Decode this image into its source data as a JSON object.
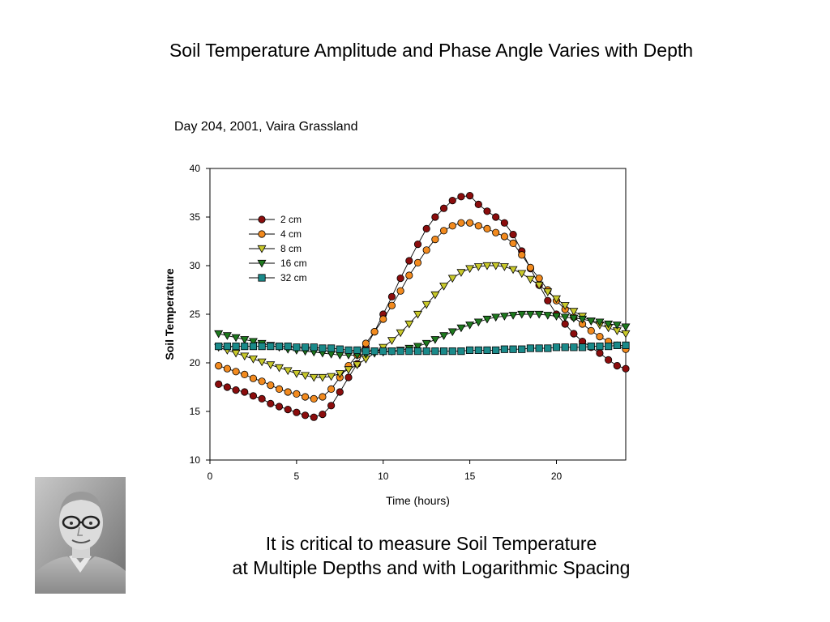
{
  "slide": {
    "title": "Soil Temperature Amplitude and Phase Angle Varies with Depth",
    "caption_line1": "It is critical to measure Soil Temperature",
    "caption_line2": "at Multiple Depths and with Logarithmic Spacing",
    "photo_icon": "portrait-photo"
  },
  "chart_data": {
    "type": "line",
    "title": "Day 204, 2001, Vaira Grassland",
    "xlabel": "Time (hours)",
    "ylabel": "Soil Temperature",
    "xlim": [
      0,
      24
    ],
    "ylim": [
      10,
      40
    ],
    "xticks": [
      0,
      5,
      10,
      15,
      20
    ],
    "yticks": [
      10,
      15,
      20,
      25,
      30,
      35,
      40
    ],
    "grid": false,
    "legend_position": "upper-left",
    "x": [
      0.5,
      1.0,
      1.5,
      2.0,
      2.5,
      3.0,
      3.5,
      4.0,
      4.5,
      5.0,
      5.5,
      6.0,
      6.5,
      7.0,
      7.5,
      8.0,
      8.5,
      9.0,
      9.5,
      10.0,
      10.5,
      11.0,
      11.5,
      12.0,
      12.5,
      13.0,
      13.5,
      14.0,
      14.5,
      15.0,
      15.5,
      16.0,
      16.5,
      17.0,
      17.5,
      18.0,
      18.5,
      19.0,
      19.5,
      20.0,
      20.5,
      21.0,
      21.5,
      22.0,
      22.5,
      23.0,
      23.5,
      24.0
    ],
    "series": [
      {
        "name": "2 cm",
        "marker": "circle",
        "color": "#8b0d0d",
        "values": [
          17.8,
          17.5,
          17.2,
          17.0,
          16.6,
          16.3,
          15.8,
          15.5,
          15.2,
          14.9,
          14.6,
          14.4,
          14.7,
          15.6,
          17.0,
          18.5,
          19.9,
          21.6,
          23.2,
          25.0,
          26.8,
          28.7,
          30.5,
          32.2,
          33.8,
          35.0,
          35.9,
          36.7,
          37.1,
          37.2,
          36.3,
          35.6,
          35.0,
          34.4,
          33.2,
          31.5,
          29.7,
          28.0,
          26.4,
          25.0,
          24.0,
          23.0,
          22.2,
          21.6,
          21.0,
          20.3,
          19.7,
          19.4
        ]
      },
      {
        "name": "4 cm",
        "marker": "circle",
        "color": "#f28a1e",
        "values": [
          19.7,
          19.4,
          19.1,
          18.8,
          18.4,
          18.1,
          17.7,
          17.3,
          17.0,
          16.8,
          16.5,
          16.3,
          16.5,
          17.3,
          18.5,
          19.7,
          20.8,
          22.0,
          23.2,
          24.5,
          25.9,
          27.4,
          29.0,
          30.3,
          31.6,
          32.7,
          33.6,
          34.1,
          34.4,
          34.4,
          34.1,
          33.8,
          33.4,
          33.0,
          32.3,
          31.1,
          29.8,
          28.7,
          27.5,
          26.4,
          25.5,
          24.7,
          24.0,
          23.3,
          22.7,
          22.2,
          21.8,
          21.4
        ]
      },
      {
        "name": "8 cm",
        "marker": "triangle-down",
        "color": "#c9c92a",
        "values": [
          21.6,
          21.3,
          21.0,
          20.7,
          20.4,
          20.1,
          19.8,
          19.5,
          19.2,
          18.9,
          18.7,
          18.5,
          18.5,
          18.6,
          18.9,
          19.3,
          19.8,
          20.4,
          21.0,
          21.6,
          22.3,
          23.1,
          24.0,
          25.0,
          26.0,
          27.0,
          27.9,
          28.7,
          29.3,
          29.7,
          29.9,
          30.0,
          30.0,
          29.9,
          29.6,
          29.2,
          28.6,
          28.0,
          27.3,
          26.6,
          25.9,
          25.3,
          24.8,
          24.3,
          23.9,
          23.6,
          23.3,
          23.0
        ]
      },
      {
        "name": "16 cm",
        "marker": "triangle-down",
        "color": "#1e7a1e",
        "values": [
          23.0,
          22.8,
          22.6,
          22.4,
          22.2,
          22.0,
          21.8,
          21.6,
          21.4,
          21.3,
          21.2,
          21.1,
          21.0,
          20.9,
          20.8,
          20.8,
          20.8,
          20.9,
          21.0,
          21.1,
          21.2,
          21.3,
          21.5,
          21.7,
          22.0,
          22.4,
          22.8,
          23.2,
          23.6,
          23.9,
          24.2,
          24.5,
          24.7,
          24.8,
          24.9,
          25.0,
          25.0,
          25.0,
          24.9,
          24.8,
          24.7,
          24.6,
          24.5,
          24.3,
          24.2,
          24.0,
          23.9,
          23.7
        ]
      },
      {
        "name": "32 cm",
        "marker": "square",
        "color": "#1a8a8a",
        "values": [
          21.7,
          21.7,
          21.7,
          21.7,
          21.7,
          21.7,
          21.7,
          21.7,
          21.7,
          21.6,
          21.6,
          21.6,
          21.5,
          21.5,
          21.4,
          21.3,
          21.3,
          21.2,
          21.2,
          21.2,
          21.2,
          21.2,
          21.2,
          21.2,
          21.2,
          21.2,
          21.2,
          21.2,
          21.2,
          21.3,
          21.3,
          21.3,
          21.3,
          21.4,
          21.4,
          21.4,
          21.5,
          21.5,
          21.5,
          21.6,
          21.6,
          21.6,
          21.6,
          21.7,
          21.7,
          21.7,
          21.8,
          21.8
        ]
      }
    ]
  }
}
